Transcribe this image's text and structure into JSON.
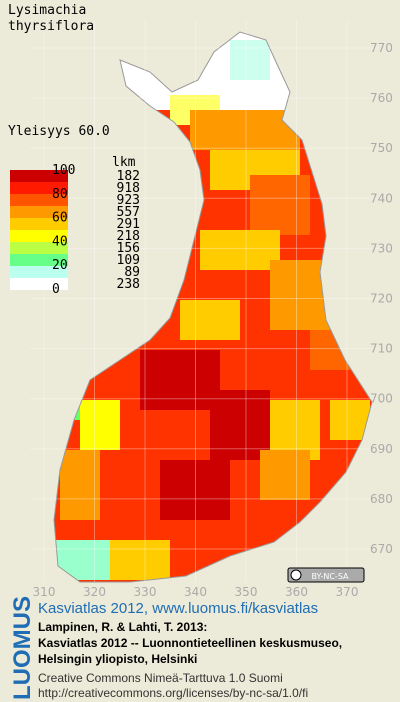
{
  "title": {
    "genus": "Lysimachia",
    "epithet": "thyrsiflora"
  },
  "frequency": "Yleisyys  60.0",
  "legend": {
    "scale_labels": [
      100,
      80,
      60,
      40,
      20,
      0
    ],
    "count_header": "lkm",
    "classes": [
      {
        "color": "#cc0000",
        "count": 182
      },
      {
        "color": "#ff1a00",
        "count": 918
      },
      {
        "color": "#ff5500",
        "count": 923
      },
      {
        "color": "#ff9900",
        "count": 557
      },
      {
        "color": "#ffcc00",
        "count": 291
      },
      {
        "color": "#ffff00",
        "count": 218
      },
      {
        "color": "#bbff44",
        "count": 156
      },
      {
        "color": "#66ff88",
        "count": 109
      },
      {
        "color": "#bbffee",
        "count": 89
      },
      {
        "color": "#ffffff",
        "count": 238
      }
    ]
  },
  "grid": {
    "northing": [
      770,
      760,
      750,
      740,
      730,
      720,
      710,
      700,
      690,
      680,
      670
    ],
    "easting": [
      310,
      320,
      330,
      340,
      350,
      360,
      370
    ]
  },
  "footer": {
    "badge": "BY-NC-SA",
    "logo": "LUOMUS",
    "atlas": "Kasviatlas 2012, www.luomus.fi/kasviatlas",
    "citation": [
      "Lampinen, R. & Lahti, T. 2013:",
      "Kasviatlas 2012 -- Luonnontieteellinen keskusmuseo,",
      "Helsingin yliopisto, Helsinki"
    ],
    "license": [
      "Creative Commons Nimeä-Tarttuva 1.0 Suomi",
      "http://creativecommons.org/licenses/by-nc-sa/1.0/fi"
    ]
  }
}
